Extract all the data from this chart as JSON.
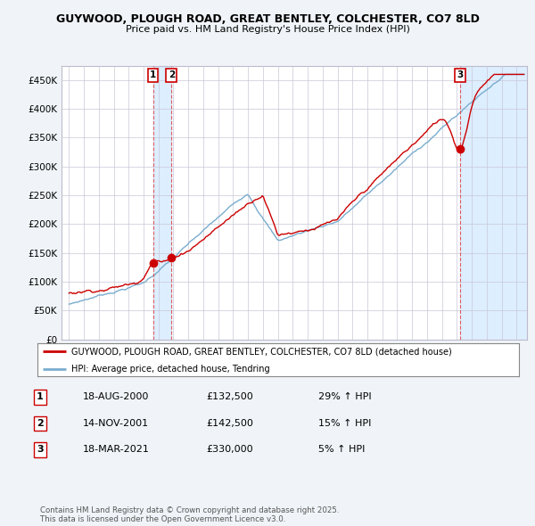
{
  "title1": "GUYWOOD, PLOUGH ROAD, GREAT BENTLEY, COLCHESTER, CO7 8LD",
  "title2": "Price paid vs. HM Land Registry's House Price Index (HPI)",
  "background_color": "#f0f4f8",
  "plot_bg": "#ffffff",
  "legend_label_red": "GUYWOOD, PLOUGH ROAD, GREAT BENTLEY, COLCHESTER, CO7 8LD (detached house)",
  "legend_label_blue": "HPI: Average price, detached house, Tendring",
  "transactions": [
    {
      "label": "1",
      "date": "18-AUG-2000",
      "price": 132500,
      "pct": "29%",
      "dir": "↑",
      "x_year": 2000.63
    },
    {
      "label": "2",
      "date": "14-NOV-2001",
      "price": 142500,
      "pct": "15%",
      "dir": "↑",
      "x_year": 2001.87
    },
    {
      "label": "3",
      "date": "18-MAR-2021",
      "price": 330000,
      "pct": "5%",
      "dir": "↑",
      "x_year": 2021.21
    }
  ],
  "footer": "Contains HM Land Registry data © Crown copyright and database right 2025.\nThis data is licensed under the Open Government Licence v3.0.",
  "yticks": [
    0,
    50000,
    100000,
    150000,
    200000,
    250000,
    300000,
    350000,
    400000,
    450000
  ],
  "ylabels": [
    "£0",
    "£50K",
    "£100K",
    "£150K",
    "£200K",
    "£250K",
    "£300K",
    "£350K",
    "£400K",
    "£450K"
  ],
  "ylim": [
    0,
    475000
  ],
  "xlim_start": 1994.5,
  "xlim_end": 2025.7,
  "red_color": "#cc0000",
  "blue_color": "#7aadce",
  "shade_color": "#ddeeff",
  "vline_color": "#dd4444",
  "marker_label_border_color": "#cc0000",
  "xticks_start": 1995,
  "xticks_end": 2025
}
